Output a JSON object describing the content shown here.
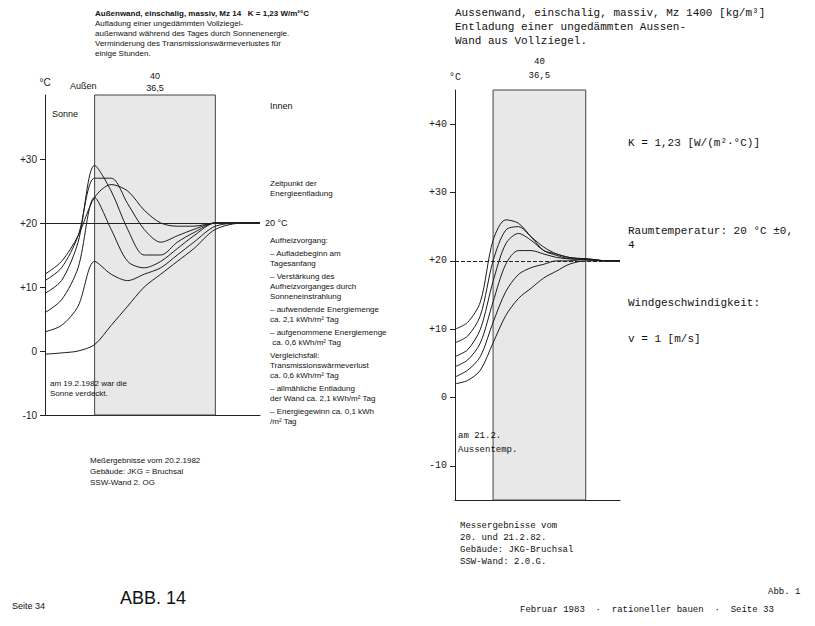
{
  "chart_data": [
    {
      "type": "line",
      "title": [
        "Außenwand, einschalig, massiv, Mz 14   K = 1,23 W/m²°C",
        "Aufladung einer ungedämmten Vollziegel-",
        "außenwand während des Tages durch Sonnenenergie.",
        "Verminderung des Transmissionswärmeverlustes für",
        "einige Stunden."
      ],
      "ylabel": "°C",
      "x": [
        -15,
        -10,
        -5,
        0,
        5,
        10,
        15,
        20,
        25,
        30,
        36.5,
        45,
        50
      ],
      "xlim": [
        -15,
        50
      ],
      "ylim": [
        -10,
        40
      ],
      "yticks": [
        {
          "value": -10,
          "label": "-10"
        },
        0,
        {
          "value": 10,
          "label": "+10"
        },
        {
          "value": 20,
          "label": "+20"
        },
        {
          "value": 30,
          "label": "+30"
        }
      ],
      "grid": false,
      "tick_labels": "y",
      "wall": {
        "from": 0,
        "to": 36.5,
        "labels": [
          "40",
          "36,5"
        ]
      },
      "room_temperature": 20,
      "room_temperature_label": "20 °C",
      "line_style": "solid",
      "series": [
        {
          "color": "#1a1a1a",
          "values": [
            -0.5,
            -0.3,
            0,
            1,
            4,
            7,
            10,
            12,
            14,
            16,
            19,
            20,
            20
          ]
        },
        {
          "color": "#1a1a1a",
          "values": [
            3,
            4,
            7,
            14,
            12,
            11,
            12,
            13,
            15,
            17,
            19.5,
            20,
            20
          ]
        },
        {
          "color": "#1a1a1a",
          "values": [
            6,
            8,
            13,
            24,
            19,
            14,
            13,
            14,
            16,
            18,
            20,
            20,
            20
          ]
        },
        {
          "color": "#1a1a1a",
          "values": [
            9,
            11,
            17,
            29,
            25,
            19,
            15,
            15,
            17,
            18.5,
            20,
            20,
            20
          ]
        },
        {
          "color": "#1a1a1a",
          "values": [
            11,
            13,
            18,
            27,
            27,
            23,
            19,
            17,
            18,
            19,
            20,
            20,
            20
          ]
        },
        {
          "color": "#1a1a1a",
          "values": [
            12,
            14,
            18,
            24,
            26,
            25,
            22,
            20,
            19.5,
            19.5,
            20,
            20,
            20
          ]
        }
      ],
      "annotations": {
        "outside": "Außen",
        "sun": "Sonne",
        "inside": "Innen",
        "discharge": "Zeitpunkt der Energieentladung",
        "cloud_note": "am 19.2.1982 war die Sonne verdeckt."
      },
      "side_notes": [
        "Aufheizvorgang:",
        "– Aufladebeginn am Tagesanfang",
        "– Verstärkung des Aufheizvorganges durch Sonneneinstrahlung",
        "– aufwendende Energiemenge ca. 2,1 kWh/m² Tag",
        "– aufgenommene Energiemenge ca. 0,6 kWh/m² Tag",
        "Vergleichsfall: Transmissionswärmeverlust ca. 0,6 kWh/m² Tag",
        "– allmähliche Entladung der Wand ca. 2,1 kWh/m² Tag",
        "– Energiegewinn ca. 0,1 kWh/m² Tag"
      ],
      "notes": [
        "Meßergebnisse vom 20.2.1982",
        "Gebäude: JKG = Bruchsal",
        "SSW-Wand 2. OG"
      ],
      "page": "Seite 34",
      "figure": "ABB. 14"
    },
    {
      "type": "line",
      "title": [
        "Aussenwand, einschalig, massiv, Mz 1400 [kg/m³]",
        "Entladung einer ungedämmten Aussen-",
        "Wand aus Vollziegel."
      ],
      "ylabel": "°C",
      "x": [
        -15,
        -10,
        -5,
        0,
        5,
        10,
        15,
        20,
        25,
        30,
        36.5,
        45,
        50
      ],
      "xlim": [
        -15,
        50
      ],
      "ylim": [
        -15,
        45
      ],
      "yticks": [
        {
          "value": -10,
          "label": "-10"
        },
        0,
        {
          "value": 10,
          "label": "+10"
        },
        {
          "value": 20,
          "label": "+20"
        },
        {
          "value": 30,
          "label": "+30"
        },
        {
          "value": 40,
          "label": "+40"
        }
      ],
      "grid": false,
      "tick_labels": "y",
      "wall": {
        "from": 0,
        "to": 36.5,
        "labels": [
          "40",
          "36,5"
        ]
      },
      "room_temperature": 20,
      "line_style": "dashed",
      "series": [
        {
          "color": "#1a1a1a",
          "values": [
            2,
            2.5,
            4,
            8,
            12,
            14.5,
            16,
            17.5,
            18.5,
            19.5,
            20,
            20,
            20
          ]
        },
        {
          "color": "#1a1a1a",
          "values": [
            3,
            4,
            6,
            11,
            15.5,
            18,
            19,
            19.5,
            20,
            20,
            20.2,
            20,
            20
          ]
        },
        {
          "color": "#1a1a1a",
          "values": [
            4.5,
            5.5,
            8,
            14,
            19.5,
            21.5,
            21.5,
            21,
            20.5,
            20.3,
            20.3,
            20,
            20
          ]
        },
        {
          "color": "#1a1a1a",
          "values": [
            6,
            7,
            10,
            17,
            22.5,
            24,
            23,
            21.5,
            21,
            20.5,
            20.3,
            20,
            20
          ]
        },
        {
          "color": "#1a1a1a",
          "values": [
            8,
            9,
            12,
            20,
            24.5,
            25,
            23.5,
            22,
            21,
            20.5,
            20.2,
            20,
            20
          ]
        },
        {
          "color": "#1a1a1a",
          "values": [
            10,
            11,
            14,
            23,
            26,
            25.5,
            23.5,
            21.5,
            20.8,
            20.3,
            20.2,
            20,
            20
          ]
        }
      ],
      "annotations": {
        "curve_date": "am 21.2.",
        "outside_temp": "Aussentemp."
      },
      "side_notes": [
        "K = 1,23 [W/(m²·°C)]",
        "Raumtemperatur: 20 °C ±0,4",
        "Windgeschwindigkeit:",
        "v = 1 [m/s]"
      ],
      "notes": [
        "Messergebnisse vom",
        "20. und 21.2.82.",
        "Gebäude: JKG-Bruchsal",
        "SSW-Wand: 2.0.G."
      ],
      "page": "Februar 1983  ·  rationeller bauen  ·  Seite 33",
      "figure": "Abb. 1"
    }
  ]
}
